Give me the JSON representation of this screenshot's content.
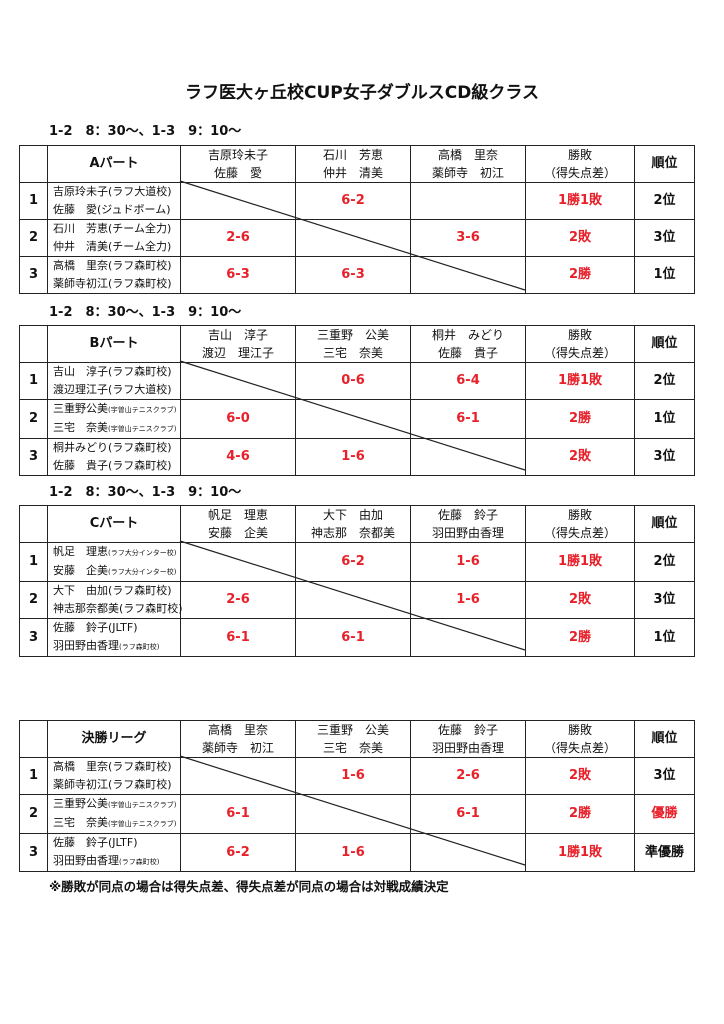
{
  "title": "ラフ医大ヶ丘校CUP女子ダブルスCD級クラス",
  "note": "※勝敗が同点の場合は得失点差、得失点差が同点の場合は対戦成績決定",
  "colors": {
    "score": "#e8202a",
    "line": "#222222"
  },
  "tables": [
    {
      "time": "1-2　8：30～、1-3　9：10～",
      "label": "Aパート",
      "columns": [
        [
          "吉原玲未子",
          "佐藤　愛"
        ],
        [
          "石川　芳恵",
          "仲井　清美"
        ],
        [
          "高橋　里奈",
          "薬師寺　初江"
        ]
      ],
      "result_header": [
        "勝敗",
        "（得失点差）"
      ],
      "rank_header": "順位",
      "rows": [
        {
          "num": "1",
          "lines": [
            {
              "name": "吉原玲未子",
              "club": "(ラフ大道校)",
              "small": false
            },
            {
              "name": "佐藤　愛",
              "club": "(ジュドボーム)",
              "small": false
            }
          ],
          "scores": [
            "",
            "6-2",
            ""
          ],
          "result": "1勝1敗",
          "rank": "2位",
          "rank_red": false
        },
        {
          "num": "2",
          "lines": [
            {
              "name": "石川　芳恵",
              "club": "(チーム全力)",
              "small": false
            },
            {
              "name": "仲井　清美",
              "club": "(チーム全力)",
              "small": false
            }
          ],
          "scores": [
            "2-6",
            "",
            "3-6"
          ],
          "result": "2敗",
          "rank": "3位",
          "rank_red": false
        },
        {
          "num": "3",
          "lines": [
            {
              "name": "高橋　里奈",
              "club": "(ラフ森町校)",
              "small": false
            },
            {
              "name": "薬師寺初江",
              "club": "(ラフ森町校)",
              "small": false
            }
          ],
          "scores": [
            "6-3",
            "6-3",
            ""
          ],
          "result": "2勝",
          "rank": "1位",
          "rank_red": false
        }
      ]
    },
    {
      "time": "1-2　8：30～、1-3　9：10～",
      "label": "Bパート",
      "columns": [
        [
          "吉山　淳子",
          "渡辺　理江子"
        ],
        [
          "三重野　公美",
          "三宅　奈美"
        ],
        [
          "桐井　みどり",
          "佐藤　貴子"
        ]
      ],
      "result_header": [
        "勝敗",
        "（得失点差）"
      ],
      "rank_header": "順位",
      "rows": [
        {
          "num": "1",
          "lines": [
            {
              "name": "吉山　淳子",
              "club": "(ラフ森町校)",
              "small": false
            },
            {
              "name": "渡辺理江子",
              "club": "(ラフ大道校)",
              "small": false
            }
          ],
          "scores": [
            "",
            "0-6",
            "6-4"
          ],
          "result": "1勝1敗",
          "rank": "2位",
          "rank_red": false
        },
        {
          "num": "2",
          "lines": [
            {
              "name": "三重野公美",
              "club": "(宇曽山テニスクラブ)",
              "small": true
            },
            {
              "name": "三宅　奈美",
              "club": "(宇曽山テニスクラブ)",
              "small": true
            }
          ],
          "scores": [
            "6-0",
            "",
            "6-1"
          ],
          "result": "2勝",
          "rank": "1位",
          "rank_red": false
        },
        {
          "num": "3",
          "lines": [
            {
              "name": "桐井みどり",
              "club": "(ラフ森町校)",
              "small": false
            },
            {
              "name": "佐藤　貴子",
              "club": "(ラフ森町校)",
              "small": false
            }
          ],
          "scores": [
            "4-6",
            "1-6",
            ""
          ],
          "result": "2敗",
          "rank": "3位",
          "rank_red": false
        }
      ]
    },
    {
      "time": "1-2　8：30～、1-3　9：10～",
      "label": "Cパート",
      "columns": [
        [
          "帆足　理恵",
          "安藤　企美"
        ],
        [
          "大下　由加",
          "神志那　奈都美"
        ],
        [
          "佐藤　鈴子",
          "羽田野由香理"
        ]
      ],
      "result_header": [
        "勝敗",
        "（得失点差）"
      ],
      "rank_header": "順位",
      "rows": [
        {
          "num": "1",
          "lines": [
            {
              "name": "帆足　理恵",
              "club": "(ラフ大分インター校)",
              "small": true
            },
            {
              "name": "安藤　企美",
              "club": "(ラフ大分インター校)",
              "small": true
            }
          ],
          "scores": [
            "",
            "6-2",
            "1-6"
          ],
          "result": "1勝1敗",
          "rank": "2位",
          "rank_red": false
        },
        {
          "num": "2",
          "lines": [
            {
              "name": "大下　由加",
              "club": "(ラフ森町校)",
              "small": false
            },
            {
              "name": "神志那奈都美",
              "club": "(ラフ森町校)",
              "small": false
            }
          ],
          "scores": [
            "2-6",
            "",
            "1-6"
          ],
          "result": "2敗",
          "rank": "3位",
          "rank_red": false
        },
        {
          "num": "3",
          "lines": [
            {
              "name": "佐藤　鈴子",
              "club": "(JLTF)",
              "small": false
            },
            {
              "name": "羽田野由香理",
              "club": "(ラフ森町校)",
              "small": true
            }
          ],
          "scores": [
            "6-1",
            "6-1",
            ""
          ],
          "result": "2勝",
          "rank": "1位",
          "rank_red": false
        }
      ]
    },
    {
      "time": "",
      "label": "決勝リーグ",
      "columns": [
        [
          "高橋　里奈",
          "薬師寺　初江"
        ],
        [
          "三重野　公美",
          "三宅　奈美"
        ],
        [
          "佐藤　鈴子",
          "羽田野由香理"
        ]
      ],
      "result_header": [
        "勝敗",
        "（得失点差）"
      ],
      "rank_header": "順位",
      "rows": [
        {
          "num": "1",
          "lines": [
            {
              "name": "高橋　里奈",
              "club": "(ラフ森町校)",
              "small": false
            },
            {
              "name": "薬師寺初江",
              "club": "(ラフ森町校)",
              "small": false
            }
          ],
          "scores": [
            "",
            "1-6",
            "2-6"
          ],
          "result": "2敗",
          "rank": "3位",
          "rank_red": false
        },
        {
          "num": "2",
          "lines": [
            {
              "name": "三重野公美",
              "club": "(宇曽山テニスクラブ)",
              "small": true
            },
            {
              "name": "三宅　奈美",
              "club": "(宇曽山テニスクラブ)",
              "small": true
            }
          ],
          "scores": [
            "6-1",
            "",
            "6-1"
          ],
          "result": "2勝",
          "rank": "優勝",
          "rank_red": true
        },
        {
          "num": "3",
          "lines": [
            {
              "name": "佐藤　鈴子",
              "club": "(JLTF)",
              "small": false
            },
            {
              "name": "羽田野由香理",
              "club": "(ラフ森町校)",
              "small": true
            }
          ],
          "scores": [
            "6-2",
            "1-6",
            ""
          ],
          "result": "1勝1敗",
          "rank": "準優勝",
          "rank_red": false
        }
      ]
    }
  ]
}
